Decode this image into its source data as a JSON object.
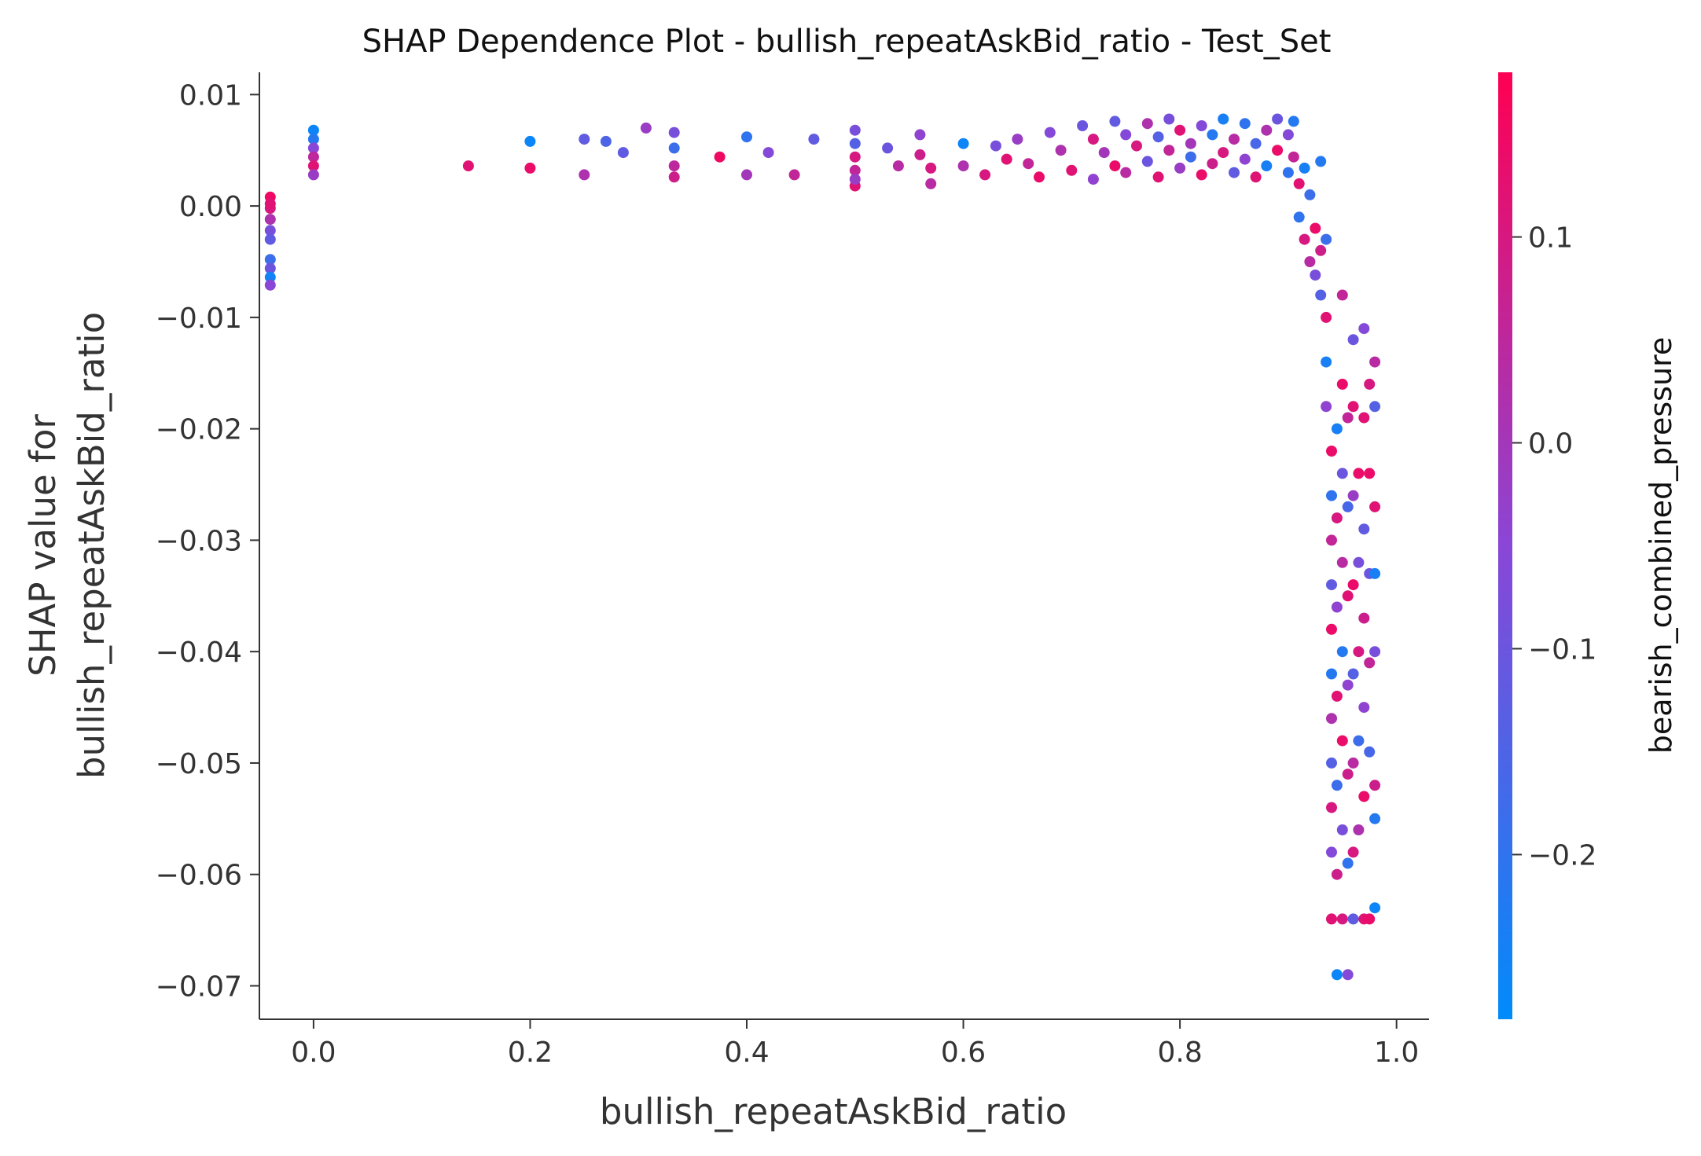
{
  "chart_data": {
    "type": "scatter",
    "title": "SHAP Dependence Plot - bullish_repeatAskBid_ratio - Test_Set",
    "xlabel": "bullish_repeatAskBid_ratio",
    "ylabel_lines": [
      "SHAP value for",
      "bullish_repeatAskBid_ratio"
    ],
    "xlim": [
      -0.05,
      1.03
    ],
    "ylim": [
      -0.073,
      0.012
    ],
    "x_ticks": [
      0.0,
      0.2,
      0.4,
      0.6,
      0.8,
      1.0
    ],
    "x_tick_labels": [
      "0.0",
      "0.2",
      "0.4",
      "0.6",
      "0.8",
      "1.0"
    ],
    "y_ticks": [
      0.01,
      0.0,
      -0.01,
      -0.02,
      -0.03,
      -0.04,
      -0.05,
      -0.06,
      -0.07
    ],
    "y_tick_labels": [
      "0.01",
      "0.00",
      "−0.01",
      "−0.02",
      "−0.03",
      "−0.04",
      "−0.05",
      "−0.06",
      "−0.07"
    ],
    "colorbar": {
      "label": "bearish_combined_pressure",
      "range": [
        -0.28,
        0.18
      ],
      "ticks": [
        0.1,
        0.0,
        -0.1,
        -0.2
      ],
      "tick_labels": [
        "0.1",
        "0.0",
        "−0.1",
        "−0.2"
      ],
      "colors": [
        "#008bfb",
        "#ff0052"
      ]
    },
    "grid": false,
    "points": [
      [
        -0.04,
        0.0008,
        0.15
      ],
      [
        -0.04,
        -0.0002,
        0.1
      ],
      [
        -0.04,
        -0.0012,
        0.02
      ],
      [
        -0.04,
        -0.0022,
        -0.08
      ],
      [
        -0.04,
        -0.003,
        -0.12
      ],
      [
        -0.04,
        -0.0048,
        -0.18
      ],
      [
        -0.04,
        -0.0056,
        -0.1
      ],
      [
        -0.04,
        -0.0064,
        -0.25
      ],
      [
        -0.04,
        -0.0071,
        -0.05
      ],
      [
        -0.04,
        0.0002,
        0.12
      ],
      [
        0.0,
        0.0068,
        -0.26
      ],
      [
        0.0,
        0.006,
        -0.22
      ],
      [
        0.0,
        0.0052,
        -0.05
      ],
      [
        0.0,
        0.0044,
        0.05
      ],
      [
        0.0,
        0.0036,
        0.12
      ],
      [
        0.0,
        0.0028,
        -0.02
      ],
      [
        0.143,
        0.0036,
        0.12
      ],
      [
        0.2,
        0.0058,
        -0.26
      ],
      [
        0.2,
        0.0034,
        0.14
      ],
      [
        0.25,
        0.006,
        -0.12
      ],
      [
        0.25,
        0.0028,
        0.02
      ],
      [
        0.27,
        0.0058,
        -0.15
      ],
      [
        0.286,
        0.0048,
        -0.12
      ],
      [
        0.307,
        0.007,
        -0.02
      ],
      [
        0.333,
        0.0066,
        -0.08
      ],
      [
        0.333,
        0.0052,
        -0.18
      ],
      [
        0.333,
        0.0036,
        0.05
      ],
      [
        0.333,
        0.0026,
        0.08
      ],
      [
        0.375,
        0.0044,
        0.15
      ],
      [
        0.4,
        0.0062,
        -0.2
      ],
      [
        0.4,
        0.0028,
        0.0
      ],
      [
        0.42,
        0.0048,
        -0.06
      ],
      [
        0.444,
        0.0028,
        0.06
      ],
      [
        0.462,
        0.006,
        -0.12
      ],
      [
        0.5,
        0.0068,
        -0.08
      ],
      [
        0.5,
        0.0056,
        -0.14
      ],
      [
        0.5,
        0.0044,
        0.1
      ],
      [
        0.5,
        0.0032,
        0.06
      ],
      [
        0.5,
        0.0018,
        0.12
      ],
      [
        0.5,
        0.0024,
        -0.02
      ],
      [
        0.53,
        0.0052,
        -0.1
      ],
      [
        0.54,
        0.0036,
        0.04
      ],
      [
        0.56,
        0.0064,
        -0.04
      ],
      [
        0.56,
        0.0046,
        0.08
      ],
      [
        0.57,
        0.0034,
        0.1
      ],
      [
        0.57,
        0.002,
        0.04
      ],
      [
        0.6,
        0.0056,
        -0.26
      ],
      [
        0.6,
        0.0036,
        0.02
      ],
      [
        0.62,
        0.0028,
        0.1
      ],
      [
        0.63,
        0.0054,
        -0.08
      ],
      [
        0.64,
        0.0042,
        0.12
      ],
      [
        0.65,
        0.006,
        -0.02
      ],
      [
        0.66,
        0.0038,
        0.06
      ],
      [
        0.67,
        0.0026,
        0.14
      ],
      [
        0.68,
        0.0066,
        -0.06
      ],
      [
        0.69,
        0.005,
        0.02
      ],
      [
        0.7,
        0.0032,
        0.12
      ],
      [
        0.71,
        0.0072,
        -0.1
      ],
      [
        0.72,
        0.006,
        0.1
      ],
      [
        0.72,
        0.0024,
        -0.04
      ],
      [
        0.73,
        0.0048,
        0.0
      ],
      [
        0.74,
        0.0076,
        -0.12
      ],
      [
        0.74,
        0.0036,
        0.14
      ],
      [
        0.75,
        0.0064,
        -0.06
      ],
      [
        0.75,
        0.003,
        0.04
      ],
      [
        0.76,
        0.0054,
        0.1
      ],
      [
        0.77,
        0.0074,
        0.02
      ],
      [
        0.77,
        0.004,
        -0.1
      ],
      [
        0.78,
        0.0026,
        0.12
      ],
      [
        0.78,
        0.0062,
        -0.14
      ],
      [
        0.79,
        0.005,
        0.06
      ],
      [
        0.79,
        0.0078,
        -0.08
      ],
      [
        0.8,
        0.0034,
        -0.02
      ],
      [
        0.8,
        0.0068,
        0.12
      ],
      [
        0.81,
        0.0044,
        -0.18
      ],
      [
        0.81,
        0.0056,
        0.0
      ],
      [
        0.82,
        0.0028,
        0.14
      ],
      [
        0.82,
        0.0072,
        -0.06
      ],
      [
        0.83,
        0.0038,
        0.08
      ],
      [
        0.83,
        0.0064,
        -0.22
      ],
      [
        0.84,
        0.0078,
        -0.24
      ],
      [
        0.84,
        0.0048,
        0.1
      ],
      [
        0.85,
        0.003,
        -0.12
      ],
      [
        0.85,
        0.006,
        0.04
      ],
      [
        0.86,
        0.0074,
        -0.2
      ],
      [
        0.86,
        0.0042,
        -0.04
      ],
      [
        0.87,
        0.0026,
        0.12
      ],
      [
        0.87,
        0.0056,
        -0.16
      ],
      [
        0.88,
        0.0068,
        0.02
      ],
      [
        0.88,
        0.0036,
        -0.24
      ],
      [
        0.89,
        0.0078,
        -0.1
      ],
      [
        0.89,
        0.005,
        0.14
      ],
      [
        0.9,
        0.003,
        -0.2
      ],
      [
        0.9,
        0.0064,
        -0.06
      ],
      [
        0.905,
        0.0076,
        -0.22
      ],
      [
        0.905,
        0.0044,
        0.06
      ],
      [
        0.91,
        0.002,
        0.12
      ],
      [
        0.91,
        -0.001,
        -0.2
      ],
      [
        0.915,
        -0.003,
        0.1
      ],
      [
        0.915,
        0.0034,
        -0.24
      ],
      [
        0.92,
        -0.005,
        0.04
      ],
      [
        0.92,
        0.001,
        -0.18
      ],
      [
        0.925,
        -0.002,
        0.14
      ],
      [
        0.925,
        -0.0062,
        -0.08
      ],
      [
        0.93,
        0.004,
        -0.22
      ],
      [
        0.93,
        -0.004,
        0.08
      ],
      [
        0.93,
        -0.008,
        -0.14
      ],
      [
        0.935,
        -0.01,
        0.12
      ],
      [
        0.935,
        -0.014,
        -0.24
      ],
      [
        0.935,
        -0.018,
        -0.04
      ],
      [
        0.94,
        -0.022,
        0.14
      ],
      [
        0.94,
        -0.026,
        -0.2
      ],
      [
        0.94,
        -0.03,
        0.06
      ],
      [
        0.94,
        -0.034,
        -0.12
      ],
      [
        0.94,
        -0.038,
        0.14
      ],
      [
        0.94,
        -0.042,
        -0.22
      ],
      [
        0.94,
        -0.046,
        0.02
      ],
      [
        0.94,
        -0.05,
        -0.14
      ],
      [
        0.94,
        -0.054,
        0.1
      ],
      [
        0.94,
        -0.058,
        -0.06
      ],
      [
        0.94,
        -0.064,
        0.12
      ],
      [
        0.945,
        -0.02,
        -0.24
      ],
      [
        0.945,
        -0.028,
        0.1
      ],
      [
        0.945,
        -0.036,
        -0.04
      ],
      [
        0.945,
        -0.044,
        0.12
      ],
      [
        0.945,
        -0.052,
        -0.18
      ],
      [
        0.945,
        -0.06,
        0.08
      ],
      [
        0.945,
        -0.069,
        -0.26
      ],
      [
        0.95,
        -0.016,
        0.14
      ],
      [
        0.95,
        -0.024,
        -0.1
      ],
      [
        0.95,
        -0.032,
        0.04
      ],
      [
        0.95,
        -0.04,
        -0.22
      ],
      [
        0.95,
        -0.048,
        0.14
      ],
      [
        0.95,
        -0.056,
        -0.08
      ],
      [
        0.95,
        -0.064,
        0.1
      ],
      [
        0.955,
        -0.019,
        0.06
      ],
      [
        0.955,
        -0.027,
        -0.16
      ],
      [
        0.955,
        -0.035,
        0.12
      ],
      [
        0.955,
        -0.043,
        -0.04
      ],
      [
        0.955,
        -0.051,
        0.08
      ],
      [
        0.955,
        -0.059,
        -0.2
      ],
      [
        0.955,
        -0.069,
        -0.06
      ],
      [
        0.96,
        -0.018,
        0.12
      ],
      [
        0.96,
        -0.026,
        -0.02
      ],
      [
        0.96,
        -0.034,
        0.14
      ],
      [
        0.96,
        -0.042,
        -0.14
      ],
      [
        0.96,
        -0.05,
        0.04
      ],
      [
        0.96,
        -0.058,
        0.1
      ],
      [
        0.96,
        -0.064,
        -0.12
      ],
      [
        0.965,
        -0.024,
        0.14
      ],
      [
        0.965,
        -0.032,
        -0.08
      ],
      [
        0.965,
        -0.04,
        0.1
      ],
      [
        0.965,
        -0.048,
        -0.18
      ],
      [
        0.965,
        -0.056,
        0.02
      ],
      [
        0.97,
        -0.011,
        -0.06
      ],
      [
        0.97,
        -0.019,
        0.12
      ],
      [
        0.97,
        -0.029,
        -0.12
      ],
      [
        0.97,
        -0.037,
        0.08
      ],
      [
        0.97,
        -0.045,
        -0.04
      ],
      [
        0.97,
        -0.053,
        0.14
      ],
      [
        0.97,
        -0.064,
        0.12
      ],
      [
        0.975,
        -0.016,
        0.1
      ],
      [
        0.975,
        -0.024,
        0.14
      ],
      [
        0.975,
        -0.033,
        -0.1
      ],
      [
        0.975,
        -0.041,
        0.06
      ],
      [
        0.975,
        -0.049,
        -0.16
      ],
      [
        0.975,
        -0.064,
        0.14
      ],
      [
        0.98,
        -0.014,
        0.04
      ],
      [
        0.98,
        -0.018,
        -0.14
      ],
      [
        0.98,
        -0.027,
        0.12
      ],
      [
        0.98,
        -0.033,
        -0.24
      ],
      [
        0.98,
        -0.04,
        -0.08
      ],
      [
        0.98,
        -0.052,
        0.08
      ],
      [
        0.98,
        -0.055,
        -0.22
      ],
      [
        0.98,
        -0.063,
        -0.26
      ],
      [
        0.96,
        -0.012,
        -0.1
      ],
      [
        0.935,
        -0.003,
        -0.18
      ],
      [
        0.95,
        -0.008,
        0.06
      ]
    ]
  }
}
